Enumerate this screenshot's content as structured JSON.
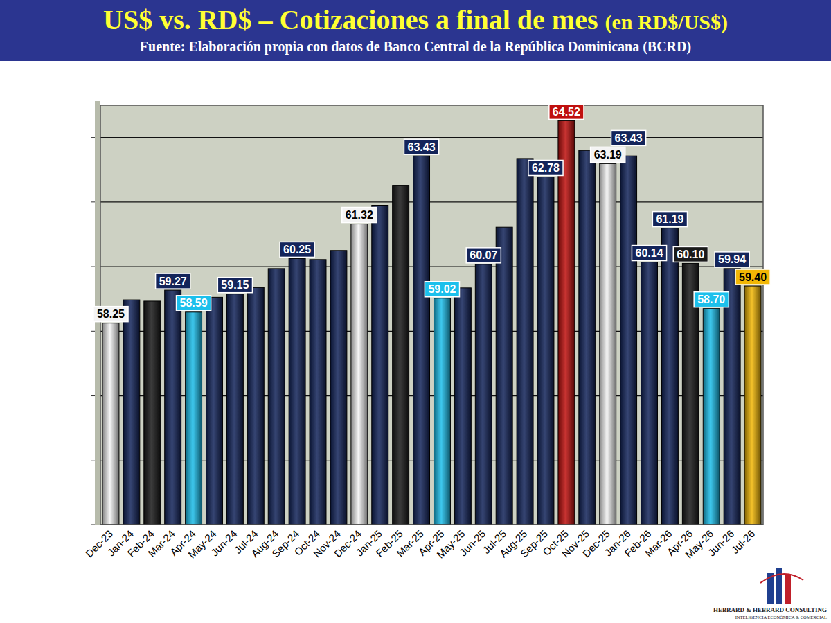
{
  "chart_data": {
    "type": "bar",
    "title": "US$ vs. RD$ – Cotizaciones a final de mes (en RD$/US$)",
    "subtitle": "Fuente: Elaboración propia con datos de Banco Central de la República Dominicana (BCRD)",
    "categories": [
      "Dec-23",
      "Jan-24",
      "Feb-24",
      "Mar-24",
      "Apr-24",
      "May-24",
      "Jun-24",
      "Jul-24",
      "Aug-24",
      "Sep-24",
      "Oct-24",
      "Nov-24",
      "Dec-24",
      "Jan-25",
      "Feb-25",
      "Mar-25",
      "Apr-25",
      "May-25",
      "Jun-25",
      "Jul-25",
      "Aug-25",
      "Sep-25",
      "Oct-25",
      "Nov-25",
      "Dec-25",
      "Jan-26",
      "Feb-26",
      "Mar-26",
      "Apr-26",
      "May-26",
      "Jun-26",
      "Jul-26"
    ],
    "values": [
      58.25,
      58.97,
      58.93,
      59.27,
      58.59,
      59.05,
      59.15,
      59.35,
      59.94,
      60.25,
      60.22,
      60.5,
      61.32,
      61.9,
      62.52,
      63.43,
      59.02,
      59.34,
      60.07,
      61.22,
      63.35,
      62.78,
      64.52,
      63.6,
      63.19,
      63.43,
      60.14,
      61.19,
      60.1,
      58.7,
      59.94,
      59.4
    ],
    "value_labels": [
      "58.25",
      null,
      null,
      "59.27",
      "58.59",
      null,
      "59.15",
      null,
      null,
      "60.25",
      null,
      null,
      "61.32",
      null,
      null,
      "63.43",
      "59.02",
      null,
      "60.07",
      null,
      null,
      "62.78",
      "64.52",
      null,
      "63.19",
      "63.43",
      "60.14",
      "61.19",
      "60.10",
      "58.70",
      "59.94",
      "59.40"
    ],
    "colors": [
      "#f4f4f4",
      "#13245a",
      "#1a1a1a",
      "#13245a",
      "#1cc0ec",
      "#13245a",
      "#13245a",
      "#13245a",
      "#13245a",
      "#13245a",
      "#13245a",
      "#13245a",
      "#f4f4f4",
      "#13245a",
      "#1a1a1a",
      "#13245a",
      "#1cc0ec",
      "#13245a",
      "#13245a",
      "#13245a",
      "#13245a",
      "#13245a",
      "#c0100e",
      "#13245a",
      "#f4f4f4",
      "#13245a",
      "#13245a",
      "#13245a",
      "#1a1a1a",
      "#1cc0ec",
      "#13245a",
      "#f2b705"
    ],
    "ylim": [
      52,
      65
    ],
    "yticks": [
      52,
      54,
      56,
      58,
      60,
      62,
      64
    ],
    "grid": true,
    "data_labels": true,
    "tick_labels": "x",
    "annotations": [
      "HEBRARD & HEBRARD CONSULTING",
      "INTELIGENCIA ECONÓMICA & COMERCIAL"
    ]
  }
}
